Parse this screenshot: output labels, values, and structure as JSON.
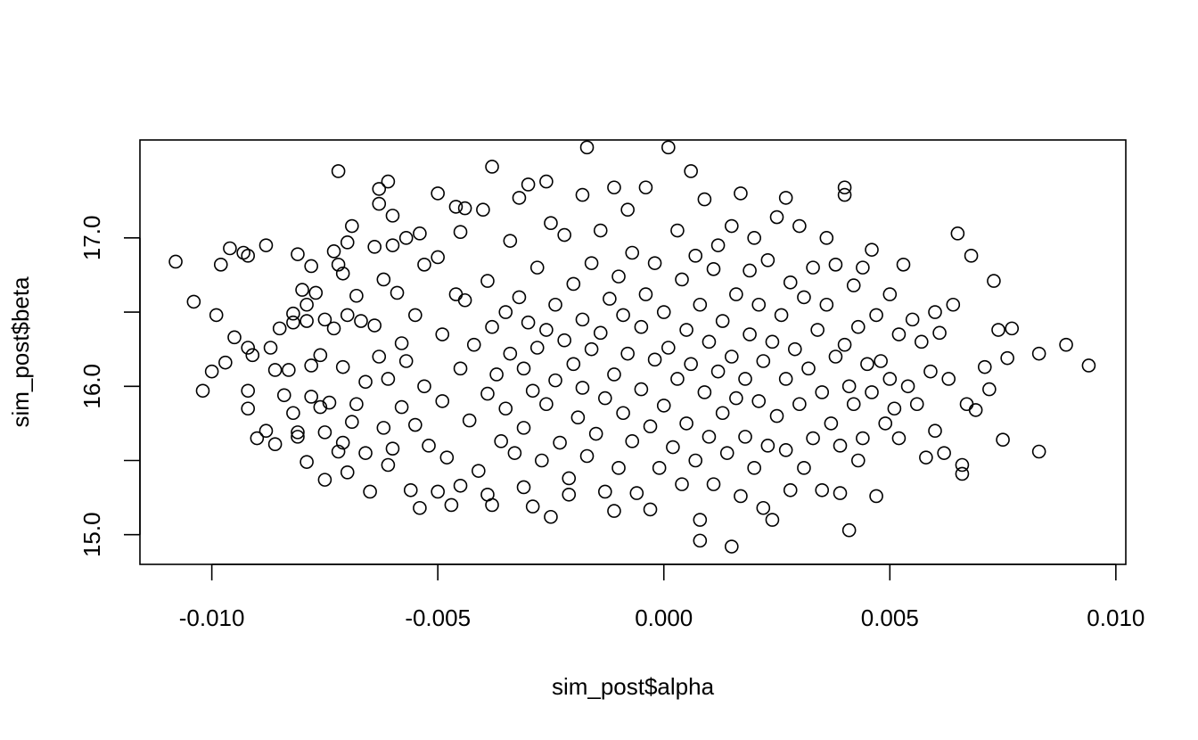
{
  "chart_data": {
    "type": "scatter",
    "title": "",
    "xlabel": "sim_post$alpha",
    "ylabel": "sim_post$beta",
    "xlim": [
      -0.01159,
      0.01022
    ],
    "ylim": [
      14.8,
      17.66
    ],
    "x_ticks": [
      {
        "value": -0.01,
        "label": "-0.010"
      },
      {
        "value": -0.005,
        "label": "-0.005"
      },
      {
        "value": 0.0,
        "label": "0.000"
      },
      {
        "value": 0.005,
        "label": "0.005"
      },
      {
        "value": 0.01,
        "label": "0.010"
      }
    ],
    "y_ticks": [
      {
        "value": 15.0,
        "label": "15.0"
      },
      {
        "value": 15.5,
        "label": ""
      },
      {
        "value": 16.0,
        "label": "16.0"
      },
      {
        "value": 16.5,
        "label": ""
      },
      {
        "value": 17.0,
        "label": "17.0"
      }
    ],
    "marker": "open-circle",
    "marker_color": "#000000",
    "grid": false,
    "legend": "none",
    "points": [
      [
        -0.0108,
        16.84
      ],
      [
        -0.0104,
        16.57
      ],
      [
        -0.0102,
        15.97
      ],
      [
        -0.01,
        16.1
      ],
      [
        -0.0099,
        16.48
      ],
      [
        -0.0098,
        16.82
      ],
      [
        -0.0097,
        16.16
      ],
      [
        -0.0096,
        16.93
      ],
      [
        -0.0095,
        16.33
      ],
      [
        -0.0093,
        16.9
      ],
      [
        -0.0092,
        16.88
      ],
      [
        -0.0092,
        16.26
      ],
      [
        -0.0092,
        15.97
      ],
      [
        -0.0092,
        15.85
      ],
      [
        -0.0091,
        16.21
      ],
      [
        -0.009,
        15.65
      ],
      [
        -0.0088,
        16.95
      ],
      [
        -0.0088,
        15.7
      ],
      [
        -0.0087,
        16.26
      ],
      [
        -0.0086,
        16.11
      ],
      [
        -0.0086,
        15.61
      ],
      [
        -0.0085,
        16.39
      ],
      [
        -0.0084,
        15.94
      ],
      [
        -0.0083,
        16.11
      ],
      [
        -0.0082,
        16.49
      ],
      [
        -0.0082,
        16.43
      ],
      [
        -0.0082,
        15.82
      ],
      [
        -0.0081,
        16.89
      ],
      [
        -0.0081,
        15.66
      ],
      [
        -0.0081,
        15.69
      ],
      [
        -0.008,
        16.65
      ],
      [
        -0.0079,
        16.55
      ],
      [
        -0.0079,
        16.44
      ],
      [
        -0.0079,
        15.49
      ],
      [
        -0.0078,
        16.81
      ],
      [
        -0.0078,
        16.14
      ],
      [
        -0.0078,
        15.93
      ],
      [
        -0.0077,
        16.63
      ],
      [
        -0.0076,
        16.21
      ],
      [
        -0.0076,
        15.86
      ],
      [
        -0.0075,
        16.45
      ],
      [
        -0.0075,
        15.69
      ],
      [
        -0.0075,
        15.37
      ],
      [
        -0.0074,
        15.89
      ],
      [
        -0.0073,
        16.91
      ],
      [
        -0.0073,
        16.39
      ],
      [
        -0.0072,
        17.45
      ],
      [
        -0.0072,
        16.82
      ],
      [
        -0.0072,
        15.56
      ],
      [
        -0.0071,
        16.76
      ],
      [
        -0.0071,
        16.13
      ],
      [
        -0.0071,
        15.62
      ],
      [
        -0.007,
        16.97
      ],
      [
        -0.007,
        16.48
      ],
      [
        -0.007,
        15.42
      ],
      [
        -0.0069,
        17.08
      ],
      [
        -0.0069,
        15.76
      ],
      [
        -0.0068,
        16.61
      ],
      [
        -0.0068,
        15.88
      ],
      [
        -0.0067,
        16.44
      ],
      [
        -0.0066,
        16.03
      ],
      [
        -0.0066,
        15.55
      ],
      [
        -0.0065,
        15.29
      ],
      [
        -0.0064,
        16.94
      ],
      [
        -0.0064,
        16.41
      ],
      [
        -0.0063,
        17.33
      ],
      [
        -0.0063,
        17.23
      ],
      [
        -0.0063,
        16.2
      ],
      [
        -0.0062,
        16.72
      ],
      [
        -0.0062,
        15.72
      ],
      [
        -0.0061,
        17.38
      ],
      [
        -0.0061,
        16.05
      ],
      [
        -0.0061,
        15.47
      ],
      [
        -0.006,
        17.15
      ],
      [
        -0.006,
        16.95
      ],
      [
        -0.006,
        15.58
      ],
      [
        -0.0059,
        16.63
      ],
      [
        -0.0058,
        16.29
      ],
      [
        -0.0058,
        15.86
      ],
      [
        -0.0057,
        17.0
      ],
      [
        -0.0057,
        16.17
      ],
      [
        -0.0056,
        15.3
      ],
      [
        -0.0055,
        16.48
      ],
      [
        -0.0055,
        15.74
      ],
      [
        -0.0054,
        17.03
      ],
      [
        -0.0054,
        15.18
      ],
      [
        -0.0053,
        16.82
      ],
      [
        -0.0053,
        16.0
      ],
      [
        -0.0052,
        15.6
      ],
      [
        -0.005,
        17.3
      ],
      [
        -0.005,
        16.87
      ],
      [
        -0.005,
        15.29
      ],
      [
        -0.0049,
        16.35
      ],
      [
        -0.0049,
        15.9
      ],
      [
        -0.0048,
        15.52
      ],
      [
        -0.0047,
        15.2
      ],
      [
        -0.0046,
        17.21
      ],
      [
        -0.0046,
        16.62
      ],
      [
        -0.0045,
        17.04
      ],
      [
        -0.0045,
        16.12
      ],
      [
        -0.0045,
        15.33
      ],
      [
        -0.0044,
        17.2
      ],
      [
        -0.0044,
        16.58
      ],
      [
        -0.0043,
        15.77
      ],
      [
        -0.0042,
        16.28
      ],
      [
        -0.0041,
        15.43
      ],
      [
        -0.004,
        17.19
      ],
      [
        -0.0039,
        16.71
      ],
      [
        -0.0039,
        15.95
      ],
      [
        -0.0039,
        15.27
      ],
      [
        -0.0038,
        17.48
      ],
      [
        -0.0038,
        16.4
      ],
      [
        -0.0038,
        15.2
      ],
      [
        -0.0037,
        16.08
      ],
      [
        -0.0036,
        15.63
      ],
      [
        -0.0035,
        16.5
      ],
      [
        -0.0035,
        15.85
      ],
      [
        -0.0034,
        16.98
      ],
      [
        -0.0034,
        16.22
      ],
      [
        -0.0033,
        15.55
      ],
      [
        -0.0032,
        17.27
      ],
      [
        -0.0032,
        16.6
      ],
      [
        -0.0031,
        16.12
      ],
      [
        -0.0031,
        15.72
      ],
      [
        -0.0031,
        15.32
      ],
      [
        -0.003,
        17.36
      ],
      [
        -0.003,
        16.43
      ],
      [
        -0.0029,
        15.97
      ],
      [
        -0.0029,
        15.19
      ],
      [
        -0.0028,
        16.8
      ],
      [
        -0.0028,
        16.26
      ],
      [
        -0.0027,
        15.5
      ],
      [
        -0.0026,
        17.38
      ],
      [
        -0.0026,
        16.38
      ],
      [
        -0.0026,
        15.88
      ],
      [
        -0.0025,
        17.1
      ],
      [
        -0.0025,
        15.12
      ],
      [
        -0.0024,
        16.55
      ],
      [
        -0.0024,
        16.04
      ],
      [
        -0.0023,
        15.62
      ],
      [
        -0.0022,
        17.02
      ],
      [
        -0.0022,
        16.31
      ],
      [
        -0.0021,
        15.38
      ],
      [
        -0.0021,
        15.27
      ],
      [
        -0.002,
        16.69
      ],
      [
        -0.002,
        16.15
      ],
      [
        -0.0019,
        15.79
      ],
      [
        -0.0018,
        17.29
      ],
      [
        -0.0018,
        16.45
      ],
      [
        -0.0018,
        15.99
      ],
      [
        -0.0017,
        17.61
      ],
      [
        -0.0017,
        15.53
      ],
      [
        -0.0016,
        16.83
      ],
      [
        -0.0016,
        16.25
      ],
      [
        -0.0015,
        15.68
      ],
      [
        -0.0014,
        17.05
      ],
      [
        -0.0014,
        16.36
      ],
      [
        -0.0013,
        15.92
      ],
      [
        -0.0013,
        15.29
      ],
      [
        -0.0012,
        16.59
      ],
      [
        -0.0011,
        17.34
      ],
      [
        -0.0011,
        16.08
      ],
      [
        -0.0011,
        15.16
      ],
      [
        -0.001,
        16.74
      ],
      [
        -0.001,
        15.45
      ],
      [
        -0.0009,
        16.48
      ],
      [
        -0.0009,
        15.82
      ],
      [
        -0.0008,
        17.19
      ],
      [
        -0.0008,
        16.22
      ],
      [
        -0.0007,
        16.9
      ],
      [
        -0.0007,
        15.63
      ],
      [
        -0.0006,
        15.28
      ],
      [
        -0.0005,
        16.4
      ],
      [
        -0.0005,
        15.98
      ],
      [
        -0.0004,
        17.34
      ],
      [
        -0.0004,
        16.62
      ],
      [
        -0.0003,
        15.73
      ],
      [
        -0.0003,
        15.17
      ],
      [
        -0.0002,
        16.18
      ],
      [
        -0.0002,
        16.83
      ],
      [
        -0.0001,
        15.45
      ],
      [
        0.0,
        16.5
      ],
      [
        0.0,
        15.87
      ],
      [
        0.0001,
        17.61
      ],
      [
        0.0001,
        16.26
      ],
      [
        0.0002,
        15.59
      ],
      [
        0.0003,
        17.05
      ],
      [
        0.0003,
        16.05
      ],
      [
        0.0004,
        16.72
      ],
      [
        0.0004,
        15.34
      ],
      [
        0.0005,
        16.38
      ],
      [
        0.0005,
        15.75
      ],
      [
        0.0006,
        17.45
      ],
      [
        0.0006,
        16.15
      ],
      [
        0.0007,
        15.5
      ],
      [
        0.0007,
        16.88
      ],
      [
        0.0008,
        15.1
      ],
      [
        0.0008,
        14.96
      ],
      [
        0.0008,
        16.55
      ],
      [
        0.0009,
        15.96
      ],
      [
        0.0009,
        17.26
      ],
      [
        0.001,
        16.3
      ],
      [
        0.001,
        15.66
      ],
      [
        0.0011,
        16.79
      ],
      [
        0.0011,
        15.34
      ],
      [
        0.0012,
        16.1
      ],
      [
        0.0012,
        16.95
      ],
      [
        0.0013,
        15.82
      ],
      [
        0.0013,
        16.44
      ],
      [
        0.0014,
        15.55
      ],
      [
        0.0015,
        14.92
      ],
      [
        0.0015,
        16.2
      ],
      [
        0.0015,
        17.08
      ],
      [
        0.0016,
        15.92
      ],
      [
        0.0016,
        16.62
      ],
      [
        0.0017,
        15.26
      ],
      [
        0.0017,
        17.3
      ],
      [
        0.0018,
        16.05
      ],
      [
        0.0018,
        15.66
      ],
      [
        0.0019,
        16.78
      ],
      [
        0.0019,
        16.35
      ],
      [
        0.002,
        15.45
      ],
      [
        0.002,
        17.0
      ],
      [
        0.0021,
        15.9
      ],
      [
        0.0021,
        16.55
      ],
      [
        0.0022,
        15.18
      ],
      [
        0.0022,
        16.17
      ],
      [
        0.0023,
        16.85
      ],
      [
        0.0023,
        15.6
      ],
      [
        0.0024,
        16.3
      ],
      [
        0.0024,
        15.1
      ],
      [
        0.0025,
        17.14
      ],
      [
        0.0025,
        15.8
      ],
      [
        0.0026,
        16.48
      ],
      [
        0.0027,
        17.27
      ],
      [
        0.0027,
        15.57
      ],
      [
        0.0027,
        16.05
      ],
      [
        0.0028,
        16.7
      ],
      [
        0.0028,
        15.3
      ],
      [
        0.0029,
        16.25
      ],
      [
        0.003,
        17.08
      ],
      [
        0.003,
        15.88
      ],
      [
        0.0031,
        16.6
      ],
      [
        0.0031,
        15.45
      ],
      [
        0.0032,
        16.12
      ],
      [
        0.0033,
        16.8
      ],
      [
        0.0033,
        15.65
      ],
      [
        0.0034,
        16.38
      ],
      [
        0.0035,
        15.96
      ],
      [
        0.0035,
        15.3
      ],
      [
        0.0036,
        17.0
      ],
      [
        0.0036,
        16.55
      ],
      [
        0.0037,
        15.75
      ],
      [
        0.0038,
        16.2
      ],
      [
        0.0038,
        16.82
      ],
      [
        0.0039,
        15.28
      ],
      [
        0.0039,
        15.6
      ],
      [
        0.004,
        17.34
      ],
      [
        0.004,
        17.29
      ],
      [
        0.004,
        16.28
      ],
      [
        0.0041,
        15.03
      ],
      [
        0.0041,
        16.0
      ],
      [
        0.0042,
        16.68
      ],
      [
        0.0042,
        15.88
      ],
      [
        0.0043,
        15.5
      ],
      [
        0.0043,
        16.4
      ],
      [
        0.0044,
        16.8
      ],
      [
        0.0044,
        15.65
      ],
      [
        0.0045,
        16.15
      ],
      [
        0.0046,
        16.92
      ],
      [
        0.0046,
        15.96
      ],
      [
        0.0047,
        15.26
      ],
      [
        0.0047,
        16.48
      ],
      [
        0.0048,
        16.17
      ],
      [
        0.0049,
        15.75
      ],
      [
        0.005,
        16.62
      ],
      [
        0.005,
        16.05
      ],
      [
        0.0051,
        15.85
      ],
      [
        0.0052,
        16.35
      ],
      [
        0.0052,
        15.65
      ],
      [
        0.0053,
        16.82
      ],
      [
        0.0054,
        16.0
      ],
      [
        0.0055,
        16.45
      ],
      [
        0.0056,
        15.88
      ],
      [
        0.0057,
        16.3
      ],
      [
        0.0058,
        15.52
      ],
      [
        0.0059,
        16.1
      ],
      [
        0.006,
        16.5
      ],
      [
        0.006,
        15.7
      ],
      [
        0.0061,
        16.36
      ],
      [
        0.0062,
        15.55
      ],
      [
        0.0063,
        16.05
      ],
      [
        0.0064,
        16.55
      ],
      [
        0.0065,
        17.03
      ],
      [
        0.0066,
        15.47
      ],
      [
        0.0066,
        15.41
      ],
      [
        0.0067,
        15.88
      ],
      [
        0.0068,
        16.88
      ],
      [
        0.0069,
        15.84
      ],
      [
        0.0071,
        16.13
      ],
      [
        0.0072,
        15.98
      ],
      [
        0.0073,
        16.71
      ],
      [
        0.0074,
        16.38
      ],
      [
        0.0075,
        15.64
      ],
      [
        0.0076,
        16.19
      ],
      [
        0.0077,
        16.39
      ],
      [
        0.0083,
        16.22
      ],
      [
        0.0083,
        15.56
      ],
      [
        0.0089,
        16.28
      ],
      [
        0.0094,
        16.14
      ]
    ]
  }
}
